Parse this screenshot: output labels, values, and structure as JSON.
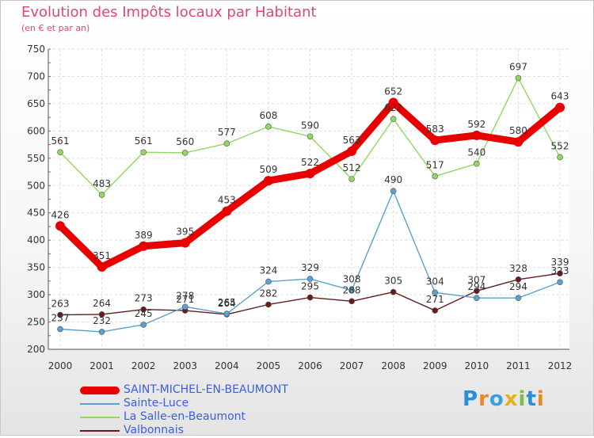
{
  "title": "Evolution des Impôts locaux par Habitant",
  "subtitle": "(en € et par an)",
  "logo": {
    "text": "Proxiti",
    "colors": [
      "#2a8fd8",
      "#e8882a",
      "#3aa0e0",
      "#e8b020",
      "#80c040",
      "#2a8fd8",
      "#e8882a"
    ]
  },
  "chart_data": {
    "type": "line",
    "x": [
      2000,
      2001,
      2002,
      2003,
      2004,
      2005,
      2006,
      2007,
      2008,
      2009,
      2010,
      2011,
      2012
    ],
    "ylim": [
      200,
      750
    ],
    "yticks": [
      200,
      250,
      300,
      350,
      400,
      450,
      500,
      550,
      600,
      650,
      700,
      750
    ],
    "grid": true,
    "legend_position": "bottom-left",
    "series": [
      {
        "name": "SAINT-MICHEL-EN-BEAUMONT",
        "color": "#e80000",
        "values": [
          426,
          351,
          389,
          395,
          453,
          509,
          522,
          563,
          652,
          583,
          592,
          580,
          643
        ]
      },
      {
        "name": "Sainte-Luce",
        "color": "#5aa0d0",
        "values": [
          237,
          232,
          245,
          278,
          265,
          324,
          329,
          308,
          490,
          304,
          294,
          294,
          323
        ]
      },
      {
        "name": "La Salle-en-Beaumont",
        "color": "#90d860",
        "values": [
          561,
          483,
          561,
          560,
          577,
          608,
          590,
          512,
          622,
          517,
          540,
          697,
          552
        ]
      },
      {
        "name": "Valbonnais",
        "color": "#6a1a1a",
        "values": [
          263,
          264,
          273,
          271,
          264,
          282,
          295,
          288,
          305,
          271,
          307,
          328,
          339
        ]
      }
    ]
  }
}
